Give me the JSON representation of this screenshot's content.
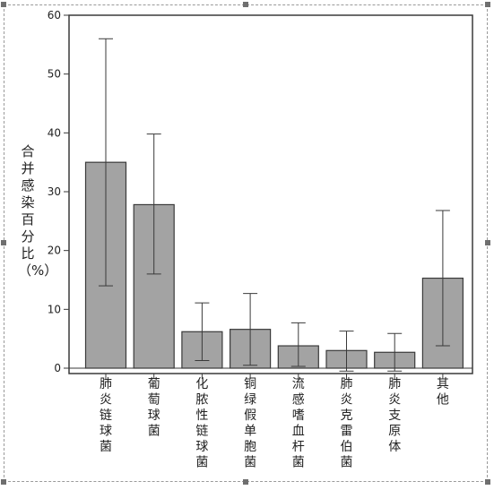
{
  "chart_data": {
    "type": "bar",
    "ylabel": "合并感染百分比（%）",
    "xlabel": "",
    "ylim": [
      0,
      60
    ],
    "yticks": [
      0,
      10,
      20,
      30,
      40,
      50,
      60
    ],
    "grid": false,
    "categories": [
      "肺炎链球菌",
      "葡萄球菌",
      "化脓性链球菌",
      "铜绿假单胞菌",
      "流感嗜血杆菌",
      "肺炎克雷伯菌",
      "肺炎支原体",
      "其他"
    ],
    "values": [
      35,
      27.8,
      6.2,
      6.6,
      3.8,
      3.0,
      2.7,
      15.3
    ],
    "error_low": [
      14,
      16,
      1.3,
      0.5,
      0.3,
      -0.5,
      -0.5,
      3.8
    ],
    "error_high": [
      56,
      39.8,
      11.1,
      12.7,
      7.7,
      6.3,
      5.9,
      26.8
    ],
    "bar_color": "#a3a3a3",
    "edge_color": "#3a3a3a"
  }
}
